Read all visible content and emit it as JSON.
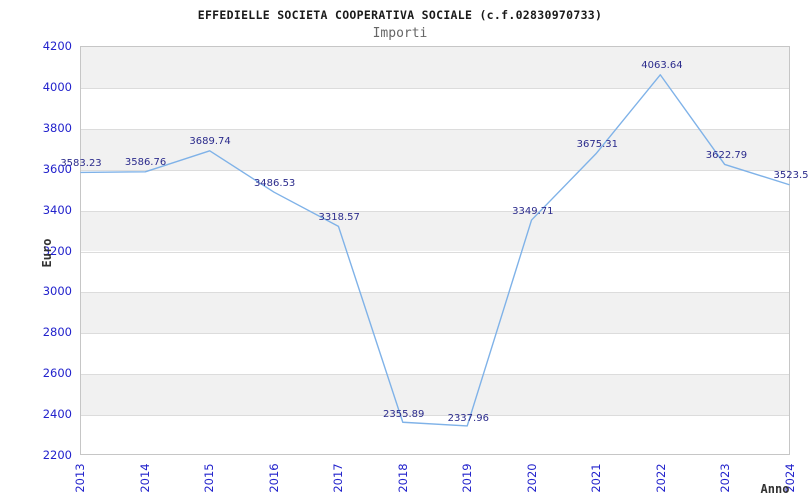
{
  "chart_data": {
    "type": "line",
    "title": "EFFEDIELLE SOCIETA COOPERATIVA SOCIALE (c.f.02830970733)",
    "subtitle": "Importi",
    "xlabel": "Anno",
    "ylabel": "Euro",
    "categories": [
      "2013",
      "2014",
      "2015",
      "2016",
      "2017",
      "2018",
      "2019",
      "2020",
      "2021",
      "2022",
      "2023",
      "2024"
    ],
    "series": [
      {
        "name": "Importi",
        "values": [
          3583.23,
          3586.76,
          3689.74,
          3486.53,
          3318.57,
          2355.89,
          2337.96,
          3349.71,
          3675.31,
          4063.64,
          3622.79,
          3523.5
        ]
      }
    ],
    "point_labels": [
      "3583.23",
      "3586.76",
      "3689.74",
      "3486.53",
      "3318.57",
      "2355.89",
      "2337.96",
      "3349.71",
      "3675.31",
      "4063.64",
      "3622.79",
      "3523.5"
    ],
    "ylim": [
      2200,
      4200
    ],
    "yticks": [
      4200,
      4000,
      3800,
      3600,
      3400,
      3200,
      3000,
      2800,
      2600,
      2400,
      2200
    ],
    "grid": "horizontal, alternating shaded bands",
    "legend": "none",
    "colors": {
      "line": "#7fb2e8",
      "point_label": "#2b2b8c",
      "tick_label": "#2222cc",
      "band": "#f1f1f1",
      "gridline": "#dcdcdc",
      "title": "#1a1a1a",
      "subtitle": "#666666",
      "axis_label": "#333333"
    }
  }
}
